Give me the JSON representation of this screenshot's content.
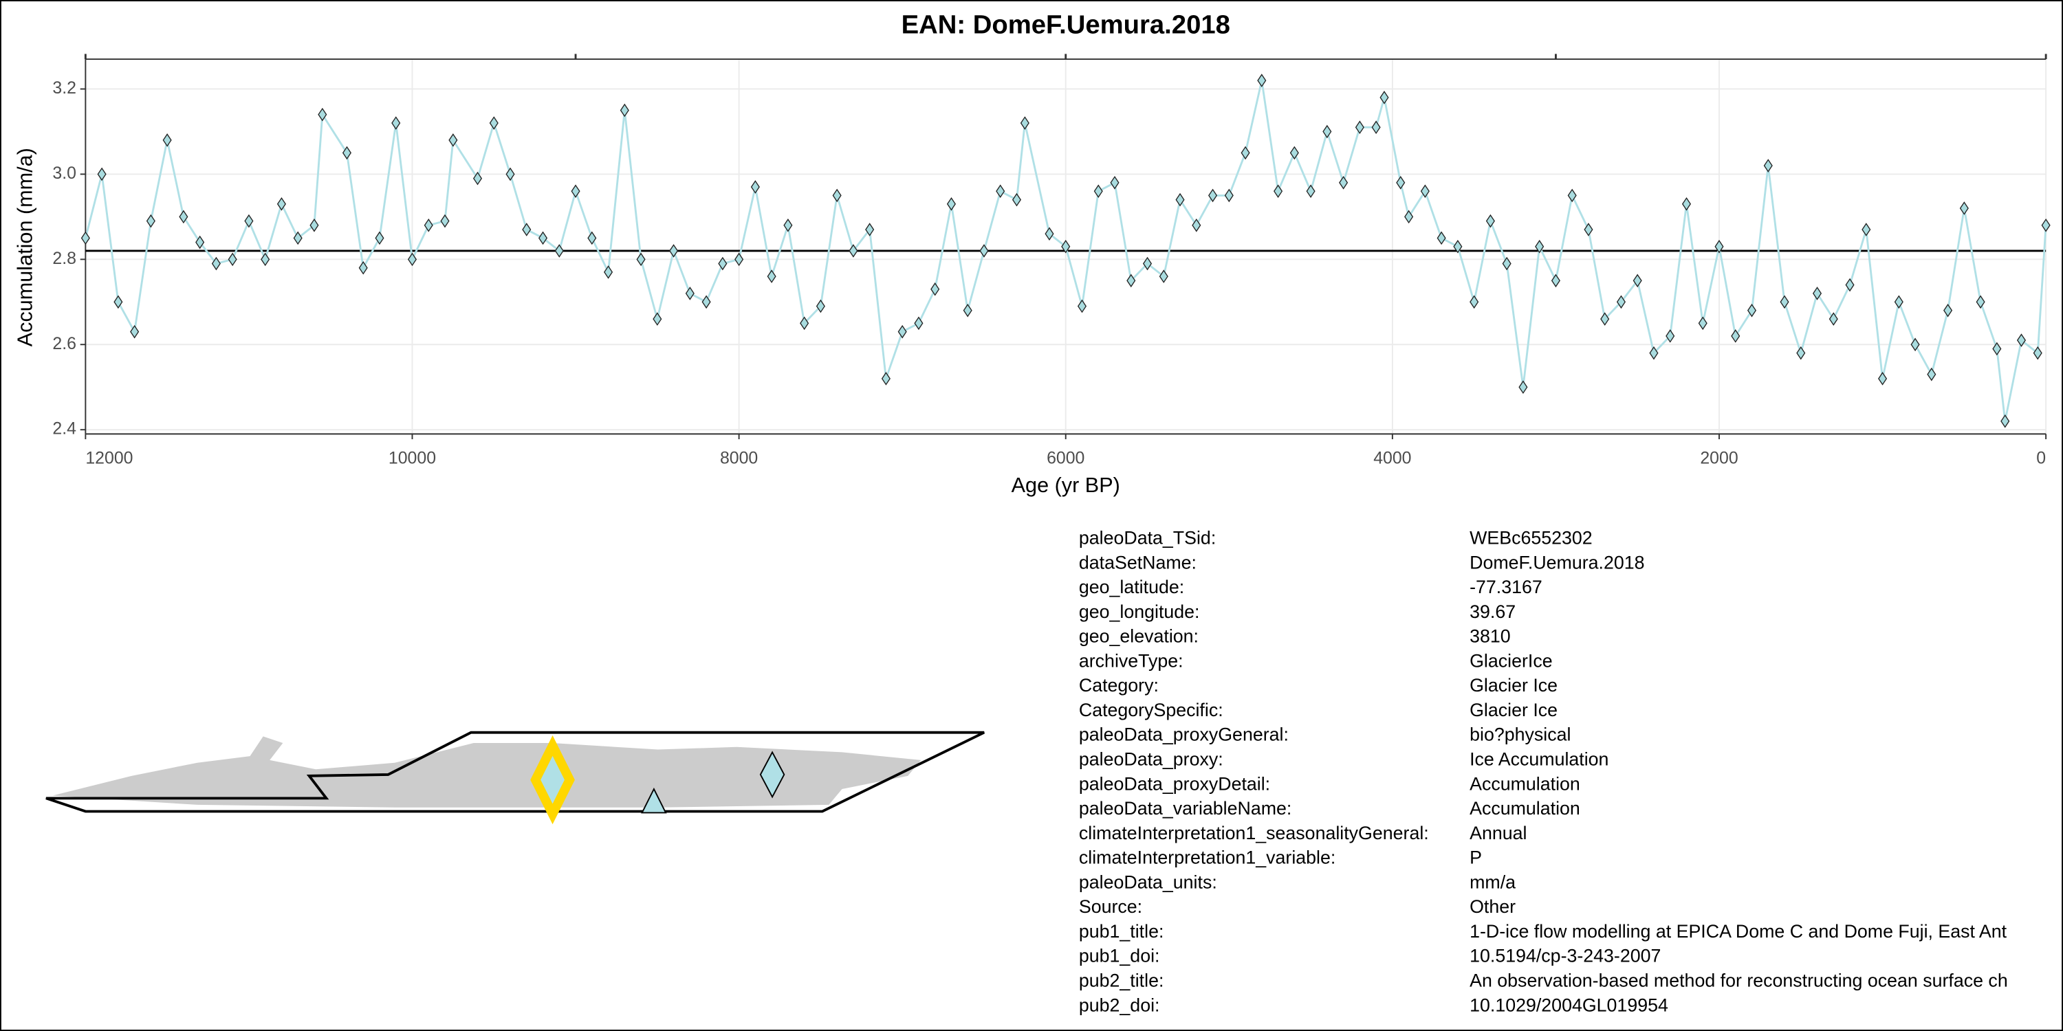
{
  "chart_data": {
    "type": "line",
    "title": "EAN: DomeF.Uemura.2018",
    "x_label": "Age (yr BP)",
    "y_label": "Accumulation (mm/a)",
    "x": [
      12000,
      11900,
      11800,
      11700,
      11600,
      11500,
      11400,
      11300,
      11200,
      11100,
      11000,
      10900,
      10800,
      10700,
      10600,
      10550,
      10400,
      10300,
      10200,
      10100,
      10000,
      9900,
      9800,
      9750,
      9600,
      9500,
      9400,
      9300,
      9200,
      9100,
      9000,
      8900,
      8800,
      8700,
      8600,
      8500,
      8400,
      8300,
      8200,
      8100,
      8000,
      7900,
      7800,
      7700,
      7600,
      7500,
      7400,
      7300,
      7200,
      7100,
      7000,
      6900,
      6800,
      6700,
      6600,
      6500,
      6400,
      6300,
      6250,
      6100,
      6000,
      5900,
      5800,
      5700,
      5600,
      5500,
      5400,
      5300,
      5200,
      5100,
      5000,
      4900,
      4800,
      4700,
      4600,
      4500,
      4400,
      4300,
      4200,
      4100,
      4050,
      3950,
      3900,
      3800,
      3700,
      3600,
      3500,
      3400,
      3300,
      3200,
      3100,
      3000,
      2900,
      2800,
      2700,
      2600,
      2500,
      2400,
      2300,
      2200,
      2100,
      2000,
      1900,
      1800,
      1700,
      1600,
      1500,
      1400,
      1300,
      1200,
      1100,
      1000,
      900,
      800,
      700,
      600,
      500,
      400,
      300,
      250,
      150,
      50,
      0
    ],
    "values": [
      2.85,
      3.0,
      2.7,
      2.63,
      2.89,
      3.08,
      2.9,
      2.84,
      2.79,
      2.8,
      2.89,
      2.8,
      2.93,
      2.85,
      2.88,
      3.14,
      3.05,
      2.78,
      2.85,
      3.12,
      2.8,
      2.88,
      2.89,
      3.08,
      2.99,
      3.12,
      3.0,
      2.87,
      2.85,
      2.82,
      2.96,
      2.85,
      2.77,
      3.15,
      2.8,
      2.66,
      2.82,
      2.72,
      2.7,
      2.79,
      2.8,
      2.97,
      2.76,
      2.88,
      2.65,
      2.69,
      2.95,
      2.82,
      2.87,
      2.52,
      2.63,
      2.65,
      2.73,
      2.93,
      2.68,
      2.82,
      2.96,
      2.94,
      3.12,
      2.86,
      2.83,
      2.69,
      2.96,
      2.98,
      2.75,
      2.79,
      2.76,
      2.94,
      2.88,
      2.95,
      2.95,
      3.05,
      3.22,
      2.96,
      3.05,
      2.96,
      3.1,
      2.98,
      3.11,
      3.11,
      3.18,
      2.98,
      2.9,
      2.96,
      2.85,
      2.83,
      2.7,
      2.89,
      2.79,
      2.5,
      2.83,
      2.75,
      2.95,
      2.87,
      2.66,
      2.7,
      2.75,
      2.58,
      2.62,
      2.93,
      2.65,
      2.83,
      2.62,
      2.68,
      3.02,
      2.7,
      2.58,
      2.72,
      2.66,
      2.74,
      2.87,
      2.52,
      2.7,
      2.6,
      2.53,
      2.68,
      2.92,
      2.7,
      2.59,
      2.42,
      2.61,
      2.58,
      2.88
    ],
    "color": "#b0e0e6",
    "marker_color": "#a9dcdf",
    "mean_line": 2.82,
    "xlim": [
      12000,
      0
    ],
    "ylim": [
      2.39,
      3.27
    ],
    "xticks": [
      12000,
      10000,
      8000,
      6000,
      4000,
      2000,
      0
    ],
    "x2ticks": [
      12000,
      9000,
      6000,
      3000,
      0
    ],
    "yticks": [
      2.4,
      2.6,
      2.8,
      {
        "value": 3,
        "label": "3.0"
      },
      3.2
    ],
    "grid": true
  },
  "metadata": {
    "rows": [
      [
        "paleoData_TSid:",
        "WEBc6552302"
      ],
      [
        "dataSetName:",
        "DomeF.Uemura.2018"
      ],
      [
        "geo_latitude:",
        "-77.3167"
      ],
      [
        "geo_longitude:",
        "39.67"
      ],
      [
        "geo_elevation:",
        "3810"
      ],
      [
        "archiveType:",
        "GlacierIce"
      ],
      [
        "Category:",
        "Glacier Ice"
      ],
      [
        "CategorySpecific:",
        "Glacier Ice"
      ],
      [
        "paleoData_proxyGeneral:",
        "bio?physical"
      ],
      [
        "paleoData_proxy:",
        "Ice Accumulation"
      ],
      [
        "paleoData_proxyDetail:",
        "Accumulation"
      ],
      [
        "paleoData_variableName:",
        "Accumulation"
      ],
      [
        "climateInterpretation1_seasonalityGeneral:",
        "Annual"
      ],
      [
        "climateInterpretation1_variable:",
        "P"
      ],
      [
        "paleoData_units:",
        "mm/a"
      ],
      [
        "Source:",
        "Other"
      ],
      [
        "pub1_title:",
        "1-D-ice flow modelling at EPICA Dome C and Dome Fuji, East Ant"
      ],
      [
        "pub1_doi:",
        "10.5194/cp-3-243-2007"
      ],
      [
        "pub2_title:",
        "An observation-based method for reconstructing ocean surface ch"
      ],
      [
        "pub2_doi:",
        "10.1029/2004GL019954"
      ]
    ]
  }
}
